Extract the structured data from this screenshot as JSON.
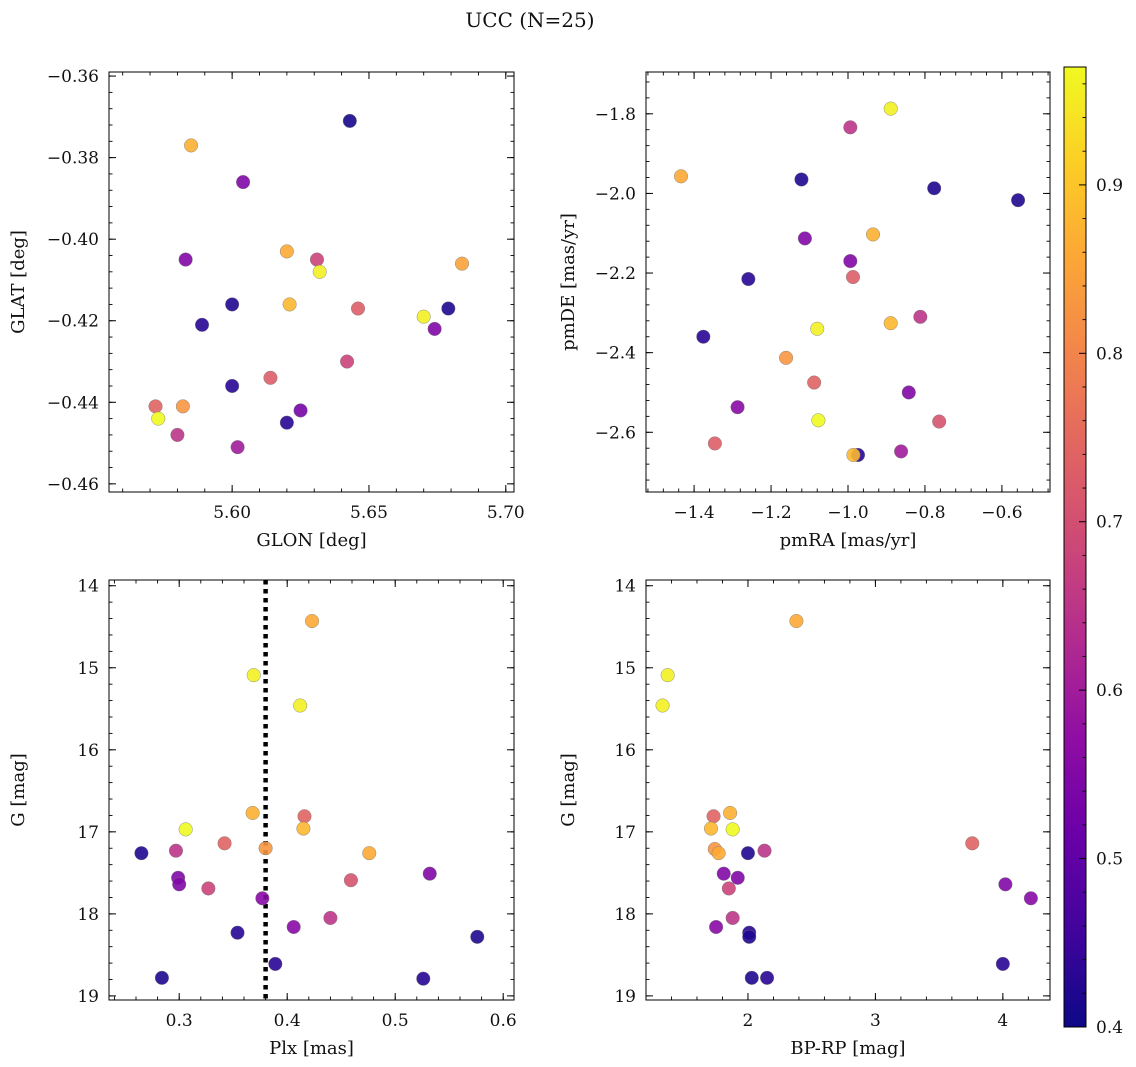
{
  "figure": {
    "title": "UCC (N=25)",
    "colorbar": {
      "colormap": "plasma",
      "range": [
        0.4,
        0.97
      ],
      "ticks": [
        0.4,
        0.5,
        0.6,
        0.7,
        0.8,
        0.9
      ],
      "tick_labels": [
        "0.4",
        "0.5",
        "0.6",
        "0.7",
        "0.8",
        "0.9"
      ]
    }
  },
  "chart_data": [
    {
      "type": "scatter",
      "xlabel": "GLON [deg]",
      "ylabel": "GLAT [deg]",
      "xlim": [
        5.555,
        5.703
      ],
      "ylim": [
        -0.462,
        -0.359
      ],
      "xticks": [
        5.6,
        5.65,
        5.7
      ],
      "xtick_labels": [
        "5.60",
        "5.65",
        "5.70"
      ],
      "yticks": [
        -0.36,
        -0.38,
        -0.4,
        -0.42,
        -0.44,
        -0.46
      ],
      "ytick_labels": [
        "−0.36",
        "−0.38",
        "−0.40",
        "−0.42",
        "−0.44",
        "−0.46"
      ],
      "points": [
        {
          "x": 5.643,
          "y": -0.371,
          "c": 0.41
        },
        {
          "x": 5.585,
          "y": -0.377,
          "c": 0.87
        },
        {
          "x": 5.604,
          "y": -0.386,
          "c": 0.55
        },
        {
          "x": 5.62,
          "y": -0.403,
          "c": 0.86
        },
        {
          "x": 5.631,
          "y": -0.405,
          "c": 0.68
        },
        {
          "x": 5.583,
          "y": -0.405,
          "c": 0.55
        },
        {
          "x": 5.632,
          "y": -0.408,
          "c": 0.96
        },
        {
          "x": 5.684,
          "y": -0.406,
          "c": 0.85
        },
        {
          "x": 5.6,
          "y": -0.416,
          "c": 0.42
        },
        {
          "x": 5.621,
          "y": -0.416,
          "c": 0.88
        },
        {
          "x": 5.646,
          "y": -0.417,
          "c": 0.73
        },
        {
          "x": 5.679,
          "y": -0.417,
          "c": 0.42
        },
        {
          "x": 5.67,
          "y": -0.419,
          "c": 0.96
        },
        {
          "x": 5.589,
          "y": -0.421,
          "c": 0.43
        },
        {
          "x": 5.674,
          "y": -0.422,
          "c": 0.55
        },
        {
          "x": 5.642,
          "y": -0.43,
          "c": 0.68
        },
        {
          "x": 5.614,
          "y": -0.434,
          "c": 0.73
        },
        {
          "x": 5.6,
          "y": -0.436,
          "c": 0.43
        },
        {
          "x": 5.572,
          "y": -0.441,
          "c": 0.74
        },
        {
          "x": 5.582,
          "y": -0.441,
          "c": 0.83
        },
        {
          "x": 5.625,
          "y": -0.442,
          "c": 0.53
        },
        {
          "x": 5.573,
          "y": -0.444,
          "c": 0.97
        },
        {
          "x": 5.62,
          "y": -0.445,
          "c": 0.43
        },
        {
          "x": 5.58,
          "y": -0.448,
          "c": 0.65
        },
        {
          "x": 5.602,
          "y": -0.451,
          "c": 0.6
        }
      ]
    },
    {
      "type": "scatter",
      "xlabel": "pmRA [mas/yr]",
      "ylabel": "pmDE [mas/yr]",
      "xlim": [
        -1.525,
        -0.475
      ],
      "ylim": [
        -2.75,
        -1.695
      ],
      "xticks": [
        -1.4,
        -1.2,
        -1.0,
        -0.8,
        -0.6
      ],
      "xtick_labels": [
        "−1.4",
        "−1.2",
        "−1.0",
        "−0.8",
        "−0.6"
      ],
      "yticks": [
        -1.8,
        -2.0,
        -2.2,
        -2.4,
        -2.6
      ],
      "ytick_labels": [
        "−1.8",
        "−2.0",
        "−2.2",
        "−2.4",
        "−2.6"
      ],
      "points": [
        {
          "x": -0.889,
          "y": -1.787,
          "c": 0.96
        },
        {
          "x": -0.994,
          "y": -1.834,
          "c": 0.65
        },
        {
          "x": -1.434,
          "y": -1.957,
          "c": 0.86
        },
        {
          "x": -1.121,
          "y": -1.965,
          "c": 0.42
        },
        {
          "x": -0.776,
          "y": -1.987,
          "c": 0.42
        },
        {
          "x": -0.558,
          "y": -2.017,
          "c": 0.42
        },
        {
          "x": -0.935,
          "y": -2.103,
          "c": 0.87
        },
        {
          "x": -1.112,
          "y": -2.113,
          "c": 0.55
        },
        {
          "x": -0.994,
          "y": -2.17,
          "c": 0.55
        },
        {
          "x": -0.987,
          "y": -2.21,
          "c": 0.73
        },
        {
          "x": -1.259,
          "y": -2.215,
          "c": 0.43
        },
        {
          "x": -0.812,
          "y": -2.31,
          "c": 0.65
        },
        {
          "x": -0.889,
          "y": -2.326,
          "c": 0.88
        },
        {
          "x": -1.08,
          "y": -2.34,
          "c": 0.96
        },
        {
          "x": -1.376,
          "y": -2.36,
          "c": 0.43
        },
        {
          "x": -1.161,
          "y": -2.413,
          "c": 0.83
        },
        {
          "x": -1.088,
          "y": -2.475,
          "c": 0.74
        },
        {
          "x": -0.842,
          "y": -2.5,
          "c": 0.55
        },
        {
          "x": -1.287,
          "y": -2.537,
          "c": 0.56
        },
        {
          "x": -1.077,
          "y": -2.57,
          "c": 0.97
        },
        {
          "x": -0.763,
          "y": -2.573,
          "c": 0.71
        },
        {
          "x": -1.346,
          "y": -2.628,
          "c": 0.73
        },
        {
          "x": -0.862,
          "y": -2.648,
          "c": 0.6
        },
        {
          "x": -0.974,
          "y": -2.657,
          "c": 0.43
        },
        {
          "x": -0.986,
          "y": -2.657,
          "c": 0.88
        }
      ]
    },
    {
      "type": "scatter",
      "xlabel": "Plx [mas]",
      "ylabel": "G [mag]",
      "xlim": [
        0.235,
        0.61
      ],
      "ylim": [
        19.05,
        13.93
      ],
      "xticks": [
        0.3,
        0.4,
        0.5,
        0.6
      ],
      "xtick_labels": [
        "0.3",
        "0.4",
        "0.5",
        "0.6"
      ],
      "yticks": [
        14,
        15,
        16,
        17,
        18,
        19
      ],
      "ytick_labels": [
        "14",
        "15",
        "16",
        "17",
        "18",
        "19"
      ],
      "vline": {
        "x": 0.38,
        "style": "dotted",
        "color": "#000000"
      },
      "points": [
        {
          "x": 0.423,
          "y": 14.43,
          "c": 0.86
        },
        {
          "x": 0.369,
          "y": 15.09,
          "c": 0.96
        },
        {
          "x": 0.412,
          "y": 15.46,
          "c": 0.96
        },
        {
          "x": 0.368,
          "y": 16.77,
          "c": 0.87
        },
        {
          "x": 0.416,
          "y": 16.81,
          "c": 0.74
        },
        {
          "x": 0.306,
          "y": 16.97,
          "c": 0.97
        },
        {
          "x": 0.415,
          "y": 16.96,
          "c": 0.88
        },
        {
          "x": 0.342,
          "y": 17.14,
          "c": 0.74
        },
        {
          "x": 0.38,
          "y": 17.2,
          "c": 0.83
        },
        {
          "x": 0.297,
          "y": 17.23,
          "c": 0.65
        },
        {
          "x": 0.476,
          "y": 17.26,
          "c": 0.86
        },
        {
          "x": 0.265,
          "y": 17.26,
          "c": 0.42
        },
        {
          "x": 0.532,
          "y": 17.51,
          "c": 0.55
        },
        {
          "x": 0.299,
          "y": 17.56,
          "c": 0.55
        },
        {
          "x": 0.459,
          "y": 17.59,
          "c": 0.71
        },
        {
          "x": 0.3,
          "y": 17.64,
          "c": 0.55
        },
        {
          "x": 0.327,
          "y": 17.69,
          "c": 0.68
        },
        {
          "x": 0.377,
          "y": 17.81,
          "c": 0.56
        },
        {
          "x": 0.44,
          "y": 18.05,
          "c": 0.65
        },
        {
          "x": 0.406,
          "y": 18.16,
          "c": 0.56
        },
        {
          "x": 0.354,
          "y": 18.23,
          "c": 0.43
        },
        {
          "x": 0.576,
          "y": 18.28,
          "c": 0.42
        },
        {
          "x": 0.389,
          "y": 18.61,
          "c": 0.43
        },
        {
          "x": 0.284,
          "y": 18.78,
          "c": 0.42
        },
        {
          "x": 0.526,
          "y": 18.79,
          "c": 0.43
        }
      ]
    },
    {
      "type": "scatter",
      "xlabel": "BP-RP [mag]",
      "ylabel": "G [mag]",
      "xlim": [
        1.2,
        4.37
      ],
      "ylim": [
        19.05,
        13.93
      ],
      "xticks": [
        2,
        3,
        4
      ],
      "xtick_labels": [
        "2",
        "3",
        "4"
      ],
      "yticks": [
        14,
        15,
        16,
        17,
        18,
        19
      ],
      "ytick_labels": [
        "14",
        "15",
        "16",
        "17",
        "18",
        "19"
      ],
      "points": [
        {
          "x": 2.38,
          "y": 14.43,
          "c": 0.86
        },
        {
          "x": 1.37,
          "y": 15.09,
          "c": 0.96
        },
        {
          "x": 1.33,
          "y": 15.46,
          "c": 0.96
        },
        {
          "x": 1.86,
          "y": 16.77,
          "c": 0.87
        },
        {
          "x": 1.73,
          "y": 16.81,
          "c": 0.74
        },
        {
          "x": 1.71,
          "y": 16.96,
          "c": 0.88
        },
        {
          "x": 1.88,
          "y": 16.97,
          "c": 0.97
        },
        {
          "x": 3.76,
          "y": 17.14,
          "c": 0.74
        },
        {
          "x": 1.74,
          "y": 17.21,
          "c": 0.83
        },
        {
          "x": 2.13,
          "y": 17.23,
          "c": 0.65
        },
        {
          "x": 1.77,
          "y": 17.26,
          "c": 0.86
        },
        {
          "x": 2.0,
          "y": 17.26,
          "c": 0.42
        },
        {
          "x": 1.81,
          "y": 17.51,
          "c": 0.55
        },
        {
          "x": 1.92,
          "y": 17.56,
          "c": 0.55
        },
        {
          "x": 4.02,
          "y": 17.64,
          "c": 0.55
        },
        {
          "x": 1.85,
          "y": 17.69,
          "c": 0.68
        },
        {
          "x": 4.22,
          "y": 17.81,
          "c": 0.56
        },
        {
          "x": 1.88,
          "y": 18.05,
          "c": 0.65
        },
        {
          "x": 1.75,
          "y": 18.16,
          "c": 0.56
        },
        {
          "x": 2.01,
          "y": 18.23,
          "c": 0.43
        },
        {
          "x": 2.01,
          "y": 18.28,
          "c": 0.42
        },
        {
          "x": 4.0,
          "y": 18.61,
          "c": 0.43
        },
        {
          "x": 2.03,
          "y": 18.78,
          "c": 0.42
        },
        {
          "x": 2.15,
          "y": 18.78,
          "c": 0.43
        }
      ]
    }
  ]
}
